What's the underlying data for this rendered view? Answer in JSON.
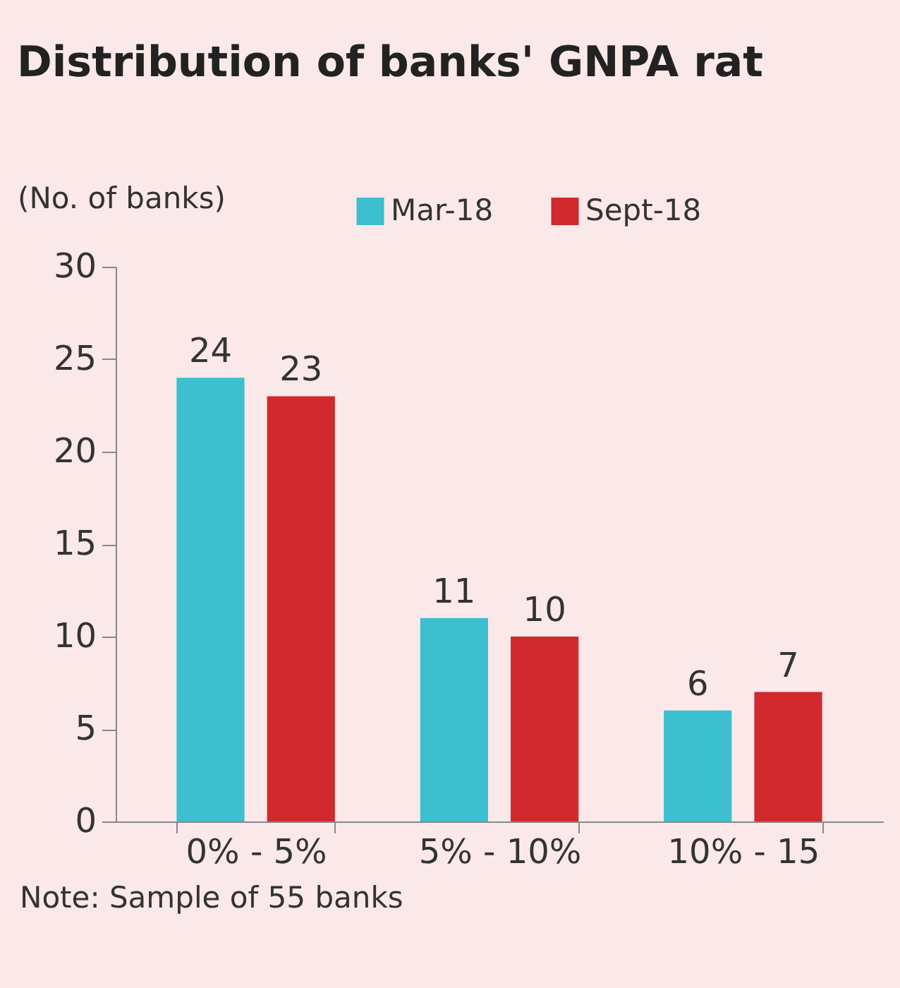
{
  "chart_data": {
    "type": "bar",
    "title": "Distribution of banks' GNPA rat",
    "ylabel": "(No. of banks)",
    "categories": [
      "0% - 5%",
      "5% - 10%",
      "10% - 15"
    ],
    "series": [
      {
        "name": "Mar-18",
        "color": "#3cbfcf",
        "values": [
          24,
          11,
          6
        ]
      },
      {
        "name": "Sept-18",
        "color": "#d0292e",
        "values": [
          23,
          10,
          7
        ]
      }
    ],
    "ylim": [
      0,
      30
    ],
    "yticks": [
      0,
      5,
      10,
      15,
      20,
      25,
      30
    ],
    "data_labels": true,
    "legend": "top left",
    "grid": false,
    "annotations": [
      "Note: Sample of 55 banks"
    ]
  }
}
